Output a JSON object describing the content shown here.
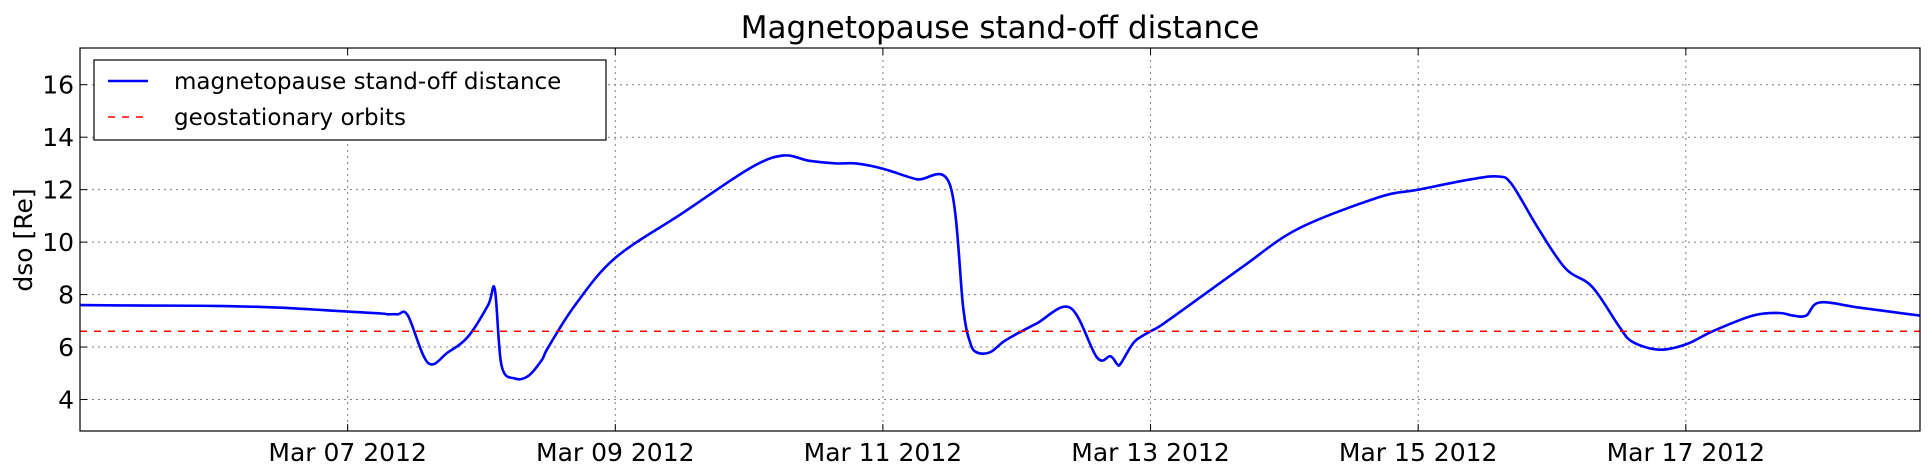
{
  "chart_data": {
    "type": "line",
    "title": "Magnetopause stand-off distance",
    "xlabel": "",
    "ylabel": "dso [Re]",
    "xlim": [
      "2012-03-05T00:00",
      "2012-03-18T18:00"
    ],
    "ylim": [
      2.8,
      17.4
    ],
    "grid": true,
    "legend_position": "top-left",
    "x_ticks": [
      "2012-03-07",
      "2012-03-09",
      "2012-03-11",
      "2012-03-13",
      "2012-03-15",
      "2012-03-17"
    ],
    "x_tick_labels": [
      "Mar 07 2012",
      "Mar 09 2012",
      "Mar 11 2012",
      "Mar 13 2012",
      "Mar 15 2012",
      "Mar 17 2012"
    ],
    "y_ticks": [
      4,
      6,
      8,
      10,
      12,
      14,
      16
    ],
    "y_tick_labels": [
      "4",
      "6",
      "8",
      "10",
      "12",
      "14",
      "16"
    ],
    "series": [
      {
        "name": "magnetopause stand-off distance",
        "color": "#0000ff",
        "style": "solid",
        "x": [
          "2012-03-05T00:00",
          "2012-03-05T12:00",
          "2012-03-06T00:00",
          "2012-03-06T12:00",
          "2012-03-07T00:00",
          "2012-03-07T06:00",
          "2012-03-07T07:12",
          "2012-03-07T09:00",
          "2012-03-07T10:48",
          "2012-03-07T14:24",
          "2012-03-07T18:00",
          "2012-03-07T21:36",
          "2012-03-08T01:12",
          "2012-03-08T02:24",
          "2012-03-08T03:36",
          "2012-03-08T06:00",
          "2012-03-08T08:24",
          "2012-03-08T10:48",
          "2012-03-08T12:00",
          "2012-03-08T16:48",
          "2012-03-09T00:00",
          "2012-03-09T12:00",
          "2012-03-10T00:00",
          "2012-03-10T06:00",
          "2012-03-10T10:48",
          "2012-03-10T15:36",
          "2012-03-10T19:12",
          "2012-03-11T00:00",
          "2012-03-11T06:00",
          "2012-03-11T12:00",
          "2012-03-11T14:24",
          "2012-03-11T15:36",
          "2012-03-11T16:48",
          "2012-03-11T19:12",
          "2012-03-11T21:36",
          "2012-03-12T00:00",
          "2012-03-12T03:36",
          "2012-03-12T09:36",
          "2012-03-12T14:24",
          "2012-03-12T16:48",
          "2012-03-12T18:00",
          "2012-03-12T18:36",
          "2012-03-12T20:24",
          "2012-03-12T21:36",
          "2012-03-13T00:00",
          "2012-03-13T02:24",
          "2012-03-13T09:36",
          "2012-03-13T16:48",
          "2012-03-14T02:24",
          "2012-03-14T16:48",
          "2012-03-15T00:00",
          "2012-03-15T09:36",
          "2012-03-15T14:24",
          "2012-03-15T16:48",
          "2012-03-15T21:36",
          "2012-03-16T02:24",
          "2012-03-16T07:12",
          "2012-03-16T12:00",
          "2012-03-16T14:24",
          "2012-03-16T19:12",
          "2012-03-17T00:00",
          "2012-03-17T04:48",
          "2012-03-17T12:00",
          "2012-03-17T16:48",
          "2012-03-17T19:12",
          "2012-03-17T21:36",
          "2012-03-18T00:00",
          "2012-03-18T07:12",
          "2012-03-18T18:00"
        ],
        "y": [
          7.6,
          7.58,
          7.57,
          7.5,
          7.35,
          7.28,
          7.25,
          7.25,
          7.2,
          5.4,
          5.8,
          6.4,
          7.6,
          8.2,
          5.3,
          4.8,
          4.9,
          5.5,
          6.0,
          7.6,
          9.4,
          11.1,
          12.8,
          13.3,
          13.1,
          13.0,
          13.0,
          12.8,
          12.4,
          12.2,
          7.5,
          6.2,
          5.8,
          5.8,
          6.2,
          6.5,
          6.9,
          7.5,
          5.6,
          5.65,
          5.35,
          5.35,
          6.0,
          6.3,
          6.6,
          6.9,
          8.0,
          9.1,
          10.5,
          11.7,
          12.0,
          12.4,
          12.5,
          12.2,
          10.5,
          9.0,
          8.3,
          6.8,
          6.2,
          5.9,
          6.1,
          6.6,
          7.2,
          7.3,
          7.2,
          7.2,
          7.7,
          7.5,
          7.2
        ]
      },
      {
        "name": "geostationary orbits",
        "color": "#ff0000",
        "style": "dashed",
        "x": [
          "2012-03-05T00:00",
          "2012-03-18T18:00"
        ],
        "y": [
          6.6,
          6.6
        ]
      }
    ]
  }
}
